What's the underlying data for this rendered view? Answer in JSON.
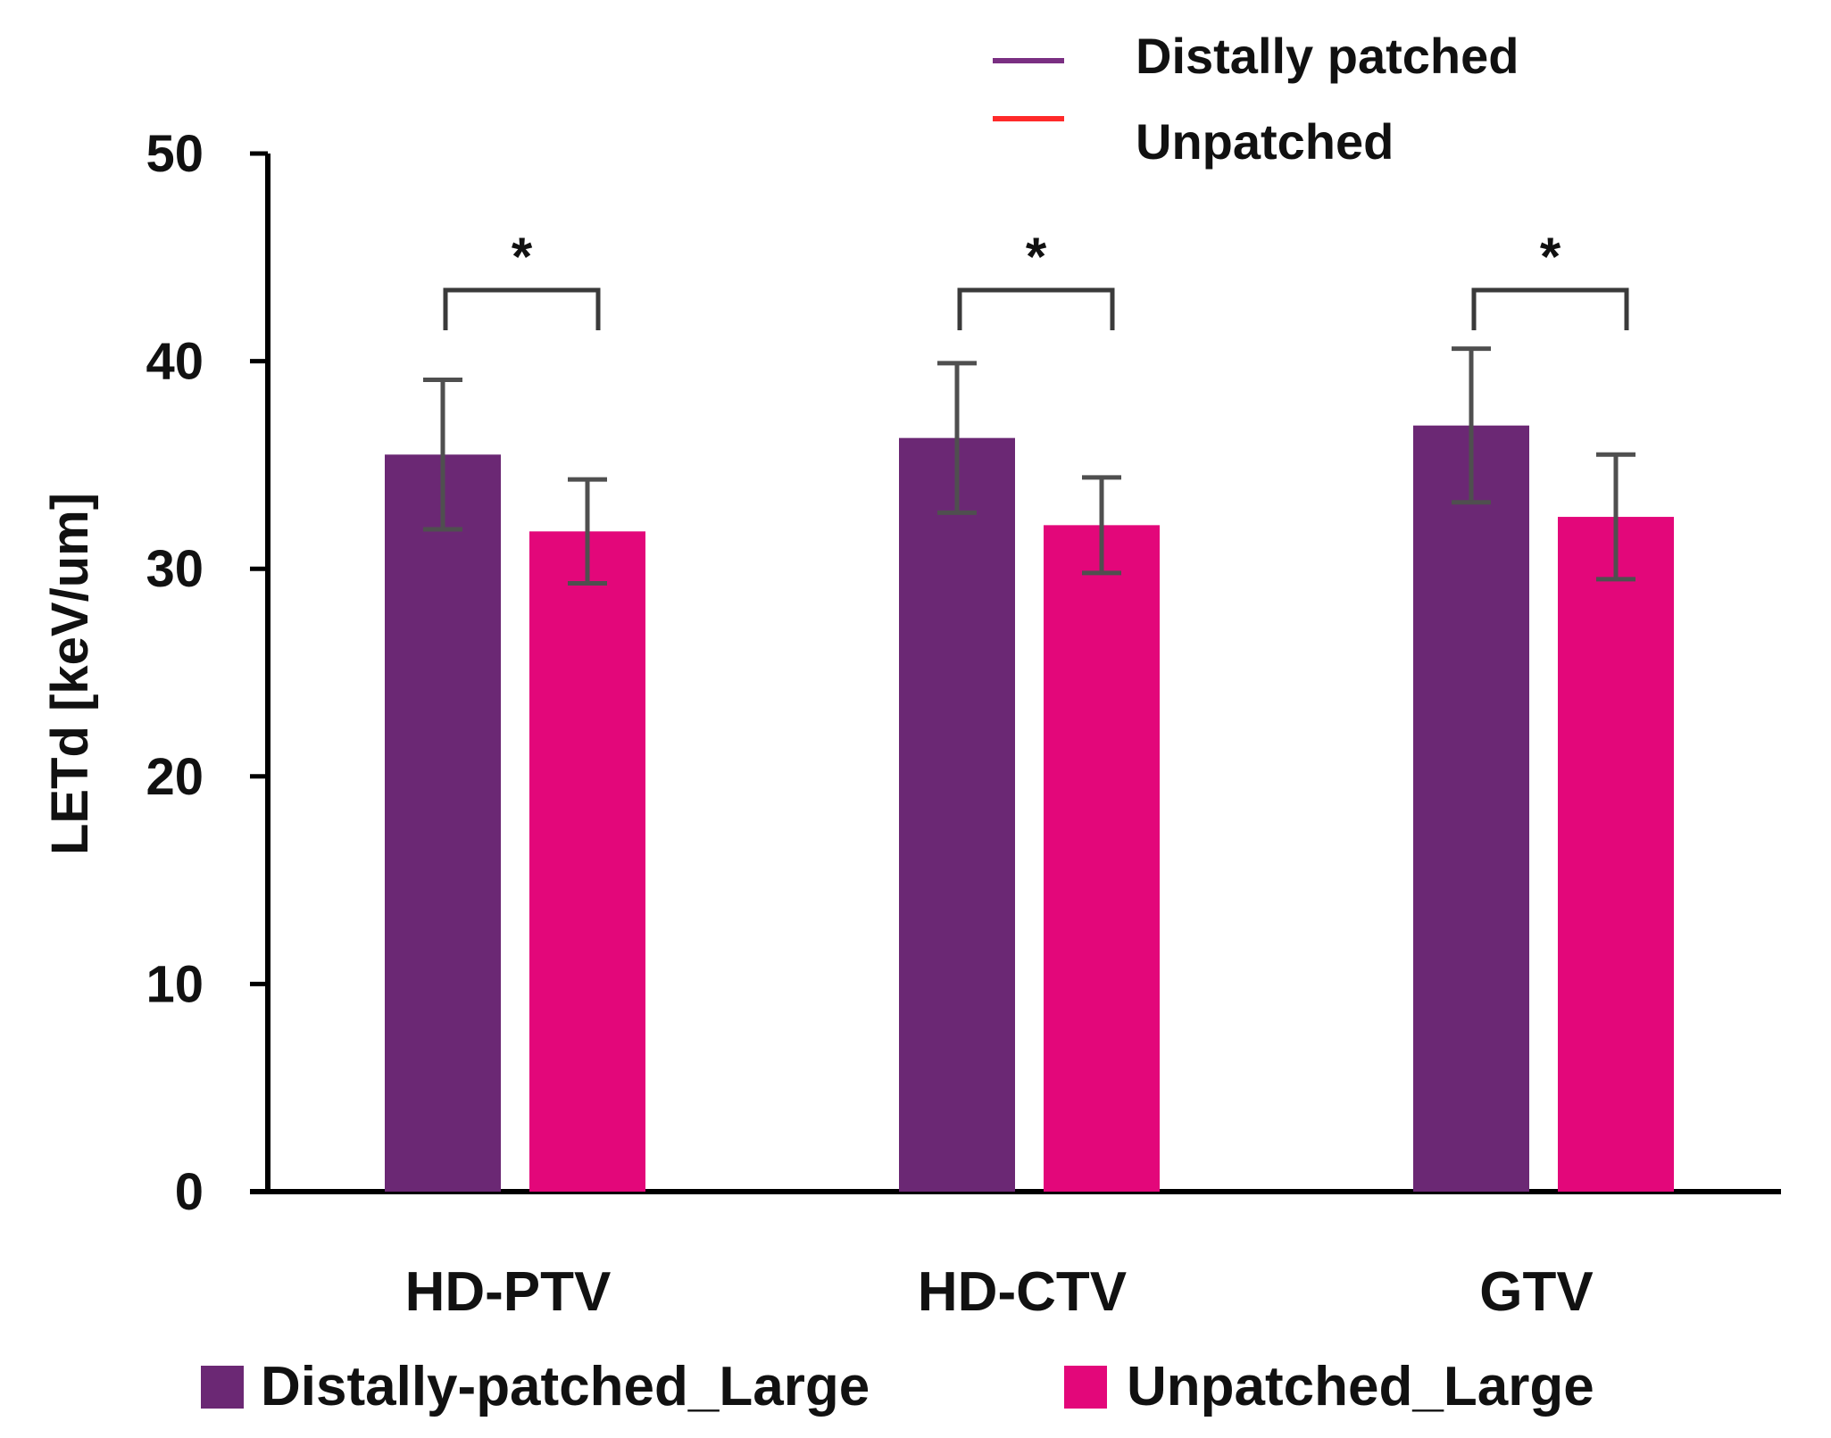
{
  "chart_data": {
    "type": "bar",
    "title": "",
    "xlabel": "",
    "ylabel": "LETd [keV/um]",
    "ylim": [
      0,
      50
    ],
    "yticks": [
      0,
      10,
      20,
      30,
      40,
      50
    ],
    "grid": false,
    "categories": [
      "HD-PTV",
      "HD-CTV",
      "GTV"
    ],
    "series": [
      {
        "name": "Distally-patched_Large",
        "color": "#6b2874",
        "values": [
          35.5,
          36.3,
          36.9
        ],
        "error": [
          3.6,
          3.6,
          3.7
        ]
      },
      {
        "name": "Unpatched_Large",
        "color": "#e3077a",
        "values": [
          31.8,
          32.1,
          32.5
        ],
        "error": [
          2.5,
          2.3,
          3.0
        ]
      }
    ],
    "significance": [
      "*",
      "*",
      "*"
    ],
    "legend_top": [
      {
        "label": "Distally patched",
        "color": "#7a2f82"
      },
      {
        "label": "Unpatched",
        "color": "#ff2a2a"
      }
    ],
    "legend_position": "bottom"
  }
}
